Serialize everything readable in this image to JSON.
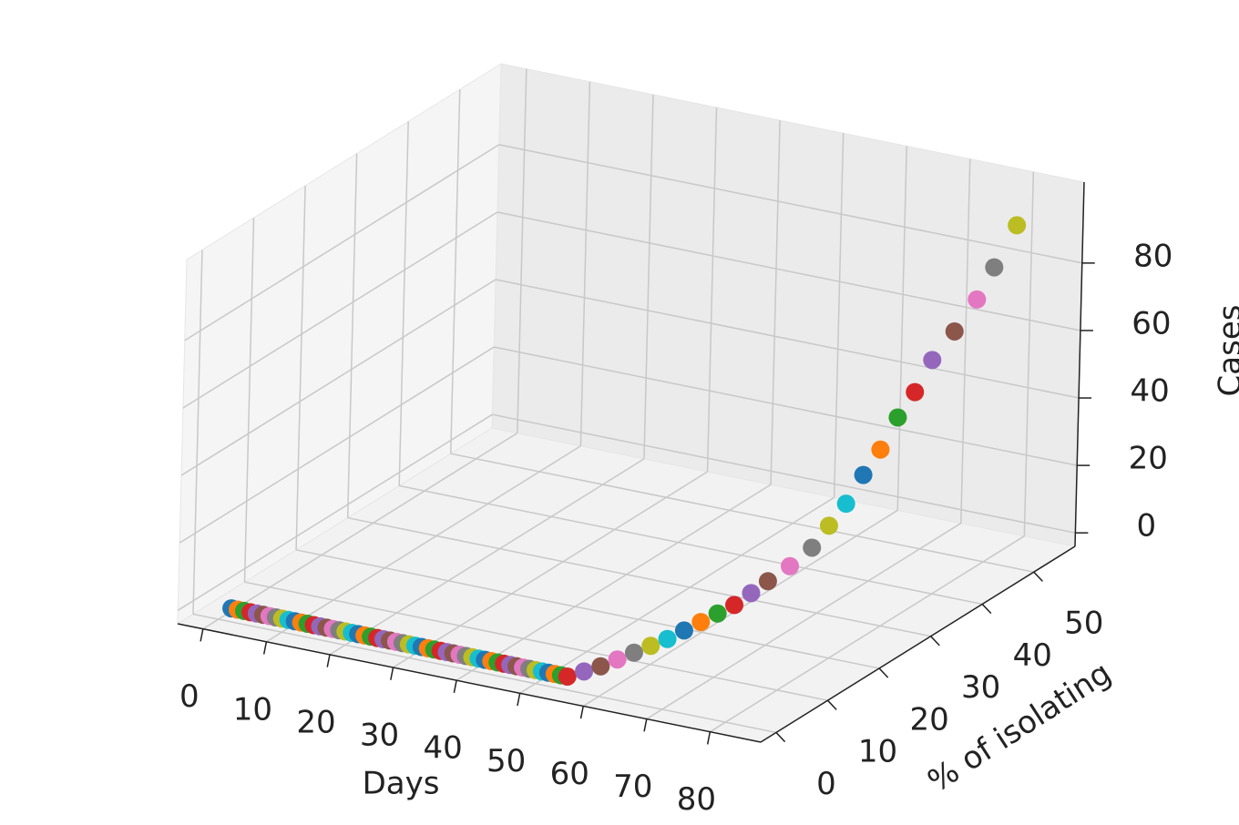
{
  "chart_data": {
    "type": "scatter3d",
    "xlabel": "Days",
    "ylabel": "% of isolating",
    "zlabel": "Cases",
    "xlim": [
      -4,
      88
    ],
    "ylim": [
      -3,
      58
    ],
    "zlim": [
      -4,
      104
    ],
    "xticks": [
      0,
      10,
      20,
      30,
      40,
      50,
      60,
      70,
      80
    ],
    "yticks": [
      0,
      10,
      20,
      30,
      40,
      50
    ],
    "zticks": [
      0,
      20,
      40,
      60,
      80
    ],
    "grid": true,
    "colors": [
      "#1f77b4",
      "#ff7f0e",
      "#2ca02c",
      "#d62728",
      "#9467bd",
      "#8c564b",
      "#e377c2",
      "#7f7f7f",
      "#bcbd22",
      "#17becf"
    ],
    "x": [
      2,
      3,
      4,
      5,
      6,
      7,
      8,
      9,
      10,
      11,
      12,
      13,
      14,
      15,
      16,
      17,
      18,
      19,
      20,
      21,
      22,
      23,
      24,
      25,
      26,
      27,
      28,
      29,
      30,
      31,
      32,
      33,
      34,
      35,
      36,
      37,
      38,
      39,
      40,
      41,
      42,
      43,
      44,
      45,
      46,
      47,
      48,
      49,
      50,
      51,
      52,
      53,
      54,
      55,
      56,
      57,
      58,
      59,
      60,
      61,
      62,
      63,
      64,
      65,
      66,
      67,
      68,
      69,
      70,
      71,
      72,
      73,
      74,
      75,
      76,
      77,
      78,
      79,
      80
    ],
    "y": [
      0,
      0,
      0,
      0,
      0,
      0,
      0,
      0,
      0,
      0,
      0,
      0,
      0,
      0,
      0,
      0,
      0,
      0,
      0,
      0,
      0,
      0,
      0,
      0,
      0,
      0,
      0,
      0,
      0,
      0,
      0,
      0,
      0,
      0,
      0,
      0,
      0,
      0,
      0,
      0,
      0,
      0,
      0,
      0,
      0,
      0,
      0,
      0,
      0,
      0,
      0,
      0,
      0,
      0,
      2,
      4,
      6,
      8,
      10,
      12,
      14,
      16,
      18,
      20,
      22,
      24,
      27,
      30,
      32,
      34,
      36,
      38,
      40,
      42,
      44,
      47,
      50,
      52,
      55
    ],
    "z": [
      0,
      0,
      0,
      0,
      0,
      0,
      0,
      0,
      0,
      0,
      0,
      0,
      0,
      0,
      0,
      0,
      0,
      0,
      0,
      0,
      0,
      0,
      0,
      0,
      0,
      0,
      0,
      0,
      0,
      0,
      0,
      0,
      0,
      0,
      0,
      0,
      0,
      0,
      0,
      0,
      0,
      0,
      0,
      0,
      0,
      0,
      0,
      0,
      0,
      0,
      0,
      0,
      0,
      0,
      0,
      0,
      0.5,
      1,
      1.5,
      2,
      3,
      4,
      5,
      6,
      8,
      10,
      12,
      15,
      20,
      25,
      32,
      38,
      46,
      52,
      60,
      66,
      73,
      81,
      91
    ]
  }
}
